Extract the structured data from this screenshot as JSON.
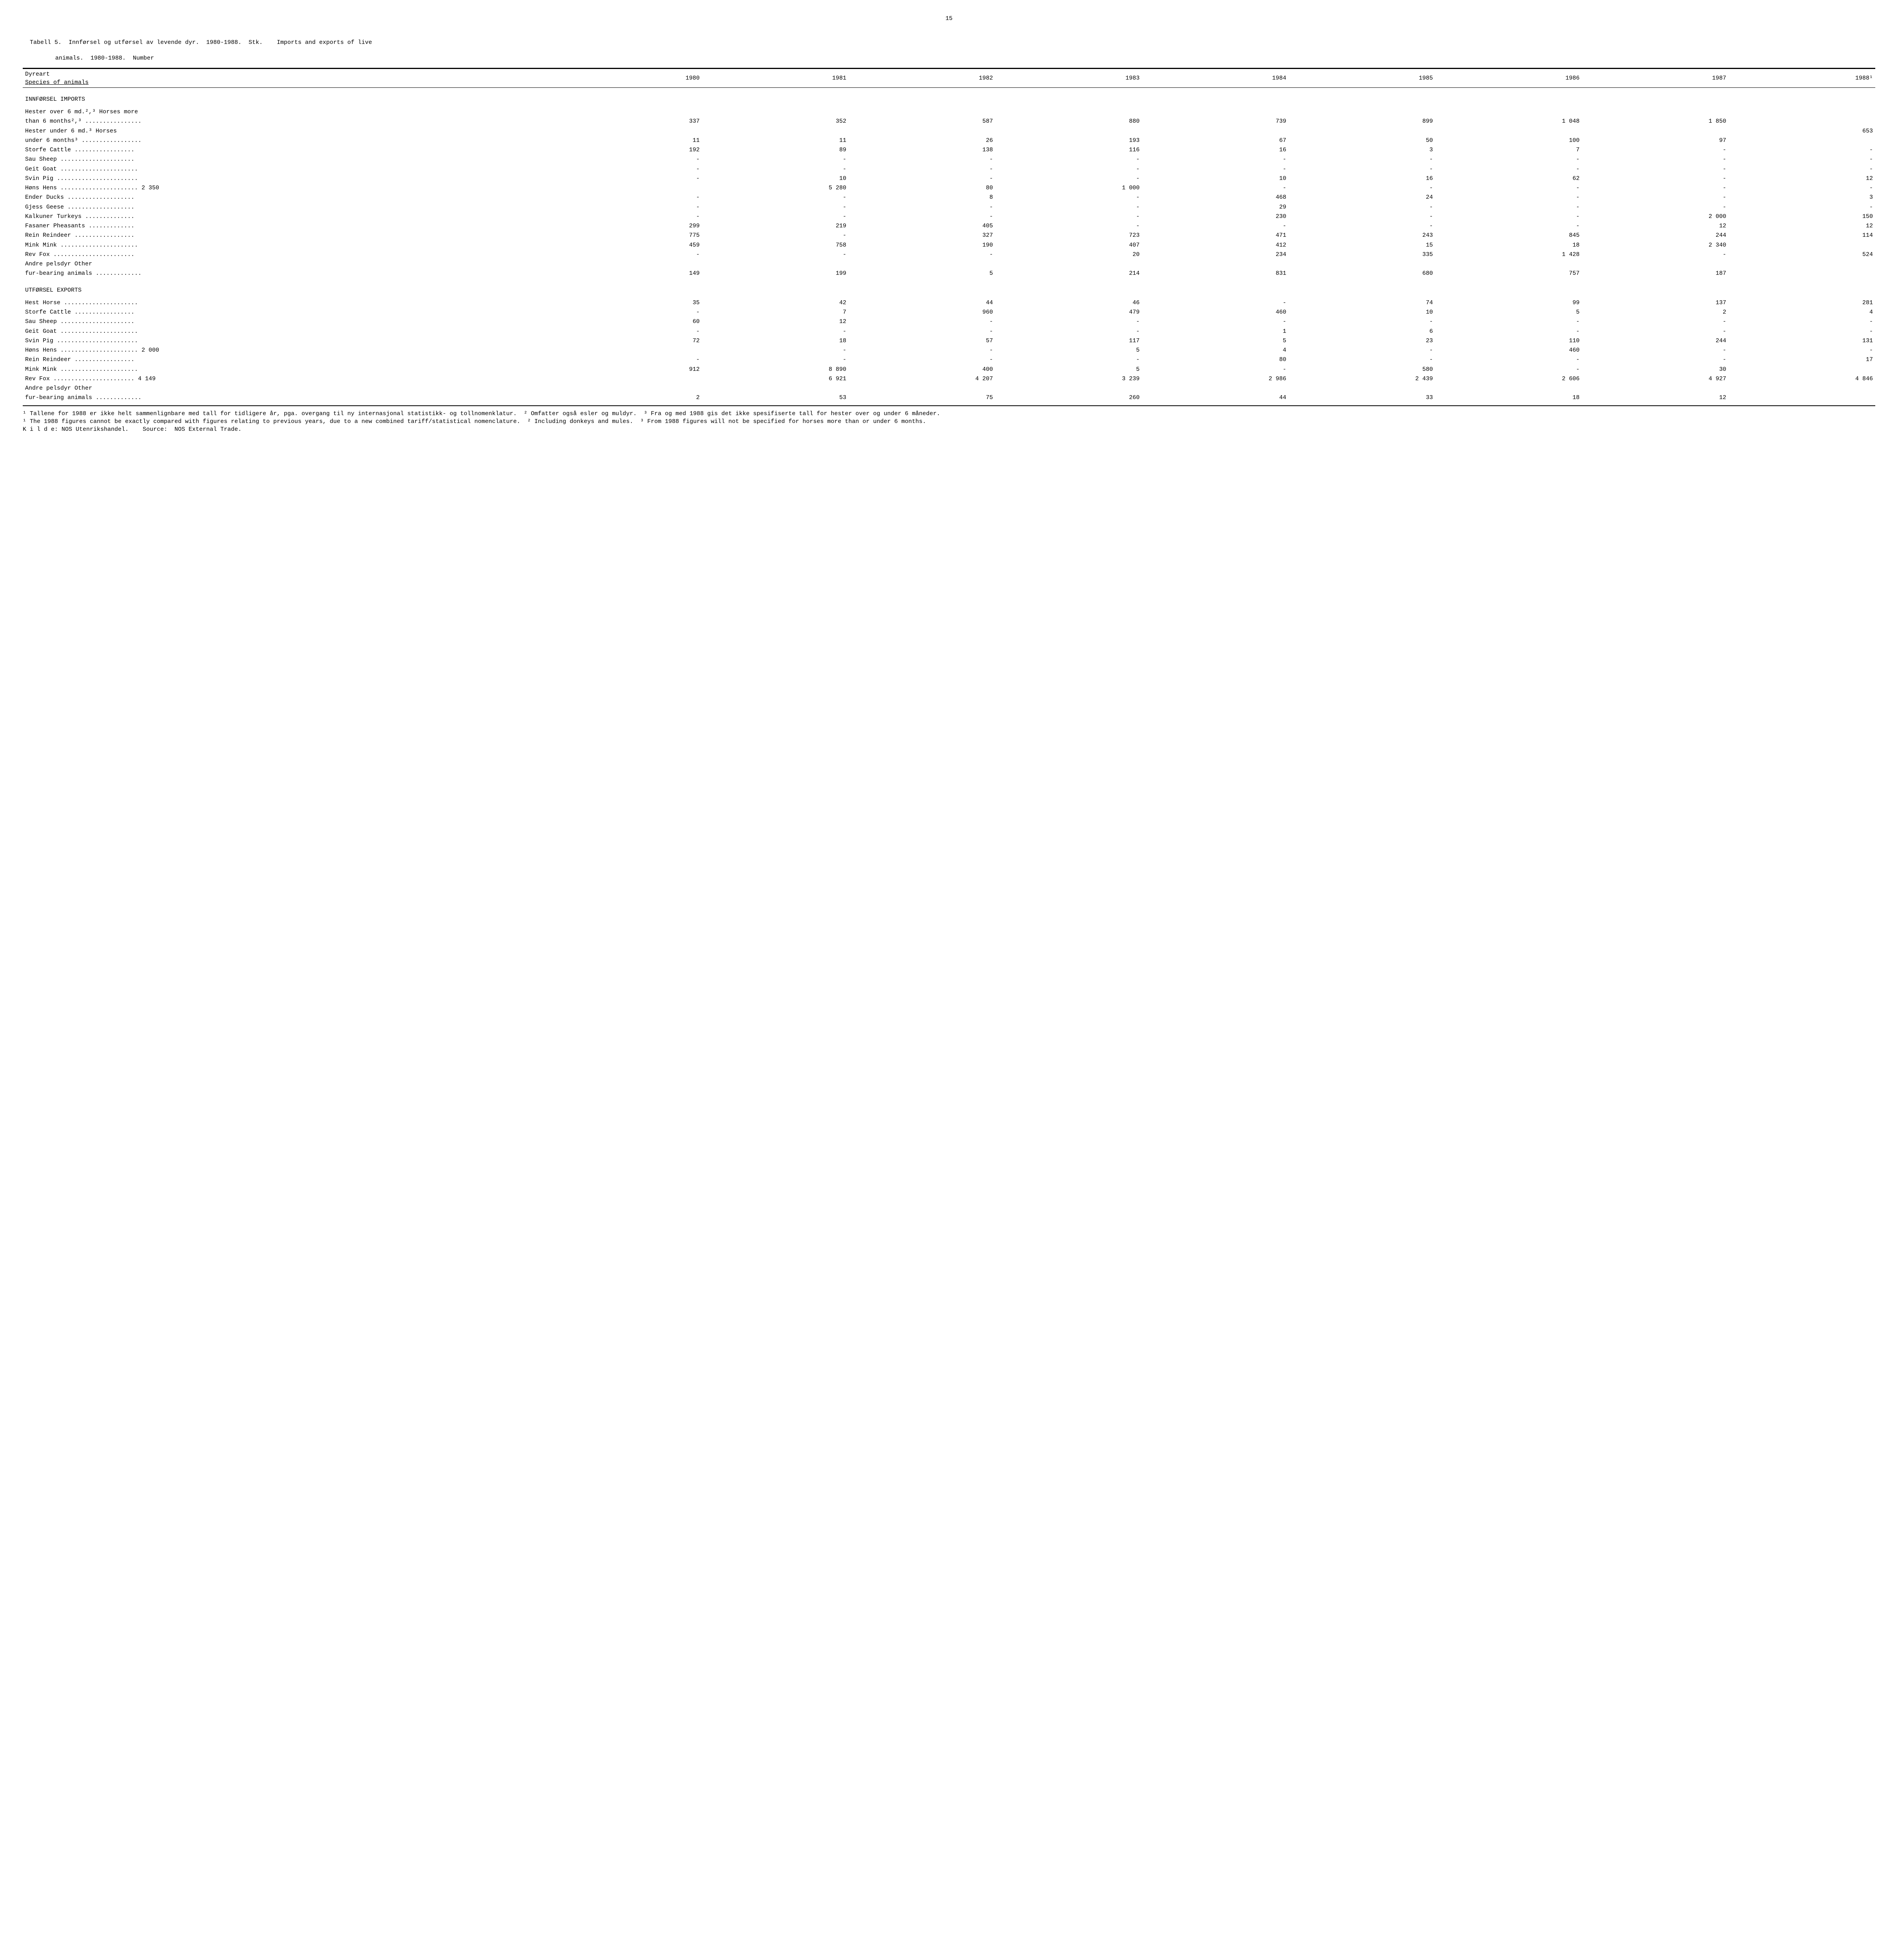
{
  "page_number": "15",
  "caption_line1": "Tabell 5.  Innførsel og utførsel av levende dyr.  1980-1988.  Stk.    Imports and exports of live",
  "caption_line2": "animals.  1980-1988.  Number",
  "header_label1": "Dyreart",
  "header_label2": "Species of animals",
  "years": [
    "1980",
    "1981",
    "1982",
    "1983",
    "1984",
    "1985",
    "1986",
    "1987",
    "1988¹"
  ],
  "sections": [
    {
      "title": "INNFØRSEL    IMPORTS",
      "rows": [
        {
          "label": "Hester over 6 md.²,³ Horses more",
          "cont": true,
          "v": [
            "",
            "",
            "",
            "",
            "",
            "",
            "",
            "",
            ""
          ]
        },
        {
          "label": "than 6 months²,³ ................",
          "v": [
            "337",
            "352",
            "587",
            "880",
            "739",
            "899",
            "1 048",
            "1 850",
            ""
          ]
        },
        {
          "label": "Hester under 6 md.³    Horses",
          "cont": true,
          "v": [
            "",
            "",
            "",
            "",
            "",
            "",
            "",
            "",
            "653"
          ]
        },
        {
          "label": "under 6 months³ .................",
          "v": [
            "11",
            "11",
            "26",
            "193",
            "67",
            "50",
            "100",
            "97",
            ""
          ]
        },
        {
          "label": "Storfe    Cattle .................",
          "v": [
            "192",
            "89",
            "138",
            "116",
            "16",
            "3",
            "7",
            "-",
            "-"
          ]
        },
        {
          "label": "Sau     Sheep .....................",
          "v": [
            "-",
            "-",
            "-",
            "-",
            "-",
            "-",
            "-",
            "-",
            "-"
          ]
        },
        {
          "label": "Geit    Goat ......................",
          "v": [
            "-",
            "-",
            "-",
            "-",
            "-",
            "-",
            "-",
            "-",
            "-"
          ]
        },
        {
          "label": "Svin    Pig .......................",
          "v": [
            "-",
            "10",
            "-",
            "-",
            "10",
            "16",
            "62",
            "-",
            "12"
          ]
        },
        {
          "label": "Høns    Hens ...................... 2 350",
          "v": [
            "",
            "5 280",
            "80",
            "1 000",
            "-",
            "-",
            "-",
            "-",
            "-"
          ]
        },
        {
          "label": "Ender    Ducks  ...................",
          "v": [
            "-",
            "-",
            "8",
            "-",
            "468",
            "24",
            "-",
            "-",
            "3"
          ]
        },
        {
          "label": "Gjess    Geese ...................",
          "v": [
            "-",
            "-",
            "-",
            "-",
            "29",
            "-",
            "-",
            "-",
            "-"
          ]
        },
        {
          "label": "Kalkuner    Turkeys ..............",
          "v": [
            "-",
            "-",
            "-",
            "-",
            "230",
            "-",
            "-",
            "2 000",
            "150"
          ]
        },
        {
          "label": "Fasaner    Pheasants .............",
          "v": [
            "299",
            "219",
            "405",
            "-",
            "-",
            "-",
            "-",
            "12",
            "12"
          ]
        },
        {
          "label": "Rein    Reindeer .................",
          "v": [
            "775",
            "-",
            "327",
            "723",
            "471",
            "243",
            "845",
            "244",
            "114"
          ]
        },
        {
          "label": "Mink    Mink ......................",
          "v": [
            "459",
            "758",
            "190",
            "407",
            "412",
            "15",
            "18",
            "2 340",
            ""
          ]
        },
        {
          "label": "Rev     Fox .......................",
          "v": [
            "-",
            "-",
            "-",
            "20",
            "234",
            "335",
            "1 428",
            "-",
            "524"
          ]
        },
        {
          "label": "Andre pelsdyr    Other",
          "cont": true,
          "v": [
            "",
            "",
            "",
            "",
            "",
            "",
            "",
            "",
            ""
          ]
        },
        {
          "label": "fur-bearing animals .............",
          "v": [
            "149",
            "199",
            "5",
            "214",
            "831",
            "680",
            "757",
            "187",
            ""
          ]
        }
      ]
    },
    {
      "title": "UTFØRSEL    EXPORTS",
      "rows": [
        {
          "label": "Hest    Horse .....................",
          "v": [
            "35",
            "42",
            "44",
            "46",
            "-",
            "74",
            "99",
            "137",
            "281"
          ]
        },
        {
          "label": "Storfe    Cattle .................",
          "v": [
            "-",
            "7",
            "960",
            "479",
            "460",
            "10",
            "5",
            "2",
            "4"
          ]
        },
        {
          "label": "Sau     Sheep .....................",
          "v": [
            "60",
            "12",
            "-",
            "-",
            "-",
            "-",
            "-",
            "-",
            "-"
          ]
        },
        {
          "label": "Geit    Goat ......................",
          "v": [
            "-",
            "-",
            "-",
            "-",
            "1",
            "6",
            "-",
            "-",
            "-"
          ]
        },
        {
          "label": "Svin    Pig .......................",
          "v": [
            "72",
            "18",
            "57",
            "117",
            "5",
            "23",
            "110",
            "244",
            "131"
          ]
        },
        {
          "label": "Høns    Hens ...................... 2 000",
          "v": [
            "",
            "-",
            "-",
            "5",
            "4",
            "-",
            "460",
            "-",
            "-"
          ]
        },
        {
          "label": "Rein    Reindeer .................",
          "v": [
            "-",
            "-",
            "-",
            "-",
            "80",
            "-",
            "-",
            "-",
            "17"
          ]
        },
        {
          "label": "Mink    Mink ......................",
          "v": [
            "912",
            "8 890",
            "400",
            "5",
            "-",
            "580",
            "-",
            "30",
            ""
          ]
        },
        {
          "label": "Rev     Fox ....................... 4 149",
          "v": [
            "",
            "6 921",
            "4 207",
            "3 239",
            "2 986",
            "2 439",
            "2 606",
            "4 927",
            "4 846"
          ]
        },
        {
          "label": "Andre pelsdyr    Other",
          "cont": true,
          "v": [
            "",
            "",
            "",
            "",
            "",
            "",
            "",
            "",
            ""
          ]
        },
        {
          "label": "fur-bearing animals .............",
          "v": [
            "2",
            "53",
            "75",
            "260",
            "44",
            "33",
            "18",
            "12",
            ""
          ]
        }
      ]
    }
  ],
  "footnotes": "¹ Tallene for 1988 er ikke helt sammenlignbare med tall for tidligere år, pga. overgang til ny internasjonal statistikk- og tollnomenklatur.  ² Omfatter også esler og muldyr.  ³ Fra og med 1988 gis det ikke spesifiserte tall for hester over og under 6 måneder.\n¹ The 1988 figures cannot be exactly compared with figures relating to previous years, due to a new combined tariff/statistical nomenclature.  ² Including donkeys and mules.  ³ From 1988 figures will not be specified for horses more than or under 6 months.\nK i l d e: NOS Utenrikshandel.    Source:  NOS External Trade."
}
